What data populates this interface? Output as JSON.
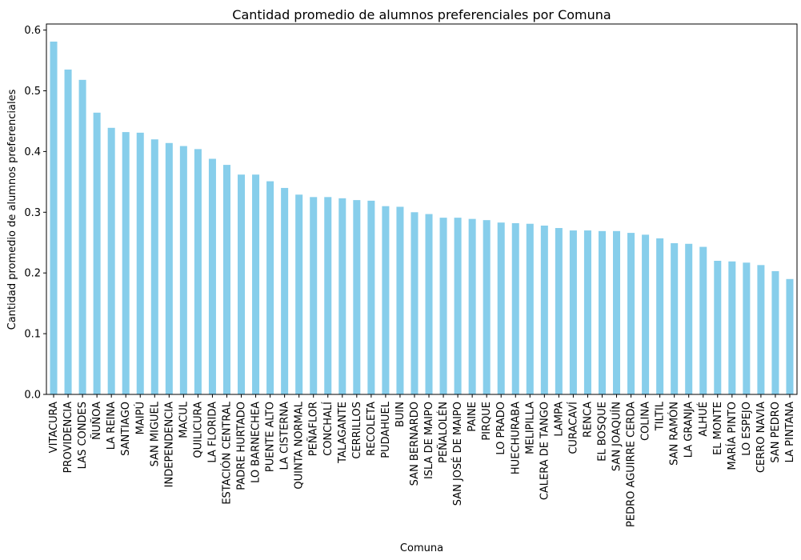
{
  "chart_data": {
    "type": "bar",
    "title": "Cantidad promedio de alumnos preferenciales por Comuna",
    "xlabel": "Comuna",
    "ylabel": "Cantidad promedio de alumnos preferenciales",
    "ylim": [
      0,
      0.61
    ],
    "yticks": [
      0.0,
      0.1,
      0.2,
      0.3,
      0.4,
      0.5,
      0.6
    ],
    "ytick_labels": [
      "0.0",
      "0.1",
      "0.2",
      "0.3",
      "0.4",
      "0.5",
      "0.6"
    ],
    "grid": false,
    "bar_color": "#87ceeb",
    "categories": [
      "VITACURA",
      "PROVIDENCIA",
      "LAS CONDES",
      "ÑUÑOA",
      "LA REINA",
      "SANTIAGO",
      "MAIPÚ",
      "SAN MIGUEL",
      "INDEPENDENCIA",
      "MACUL",
      "QUILICURA",
      "LA FLORIDA",
      "ESTACIÓN CENTRAL",
      "PADRE HURTADO",
      "LO BARNECHEA",
      "PUENTE ALTO",
      "LA CISTERNA",
      "QUINTA NORMAL",
      "PEÑAFLOR",
      "CONCHALÍ",
      "TALAGANTE",
      "CERRILLOS",
      "RECOLETA",
      "PUDAHUEL",
      "BUIN",
      "SAN BERNARDO",
      "ISLA DE MAIPO",
      "PEÑALOLÉN",
      "SAN JOSÉ DE MAIPO",
      "PAINE",
      "PIRQUE",
      "LO PRADO",
      "HUECHURABA",
      "MELIPILLA",
      "CALERA DE TANGO",
      "LAMPA",
      "CURACAVÍ",
      "RENCA",
      "EL BOSQUE",
      "SAN JOAQUÍN",
      "PEDRO AGUIRRE CERDA",
      "COLINA",
      "TILTIL",
      "SAN RAMÓN",
      "LA GRANJA",
      "ALHUÉ",
      "EL MONTE",
      "MARÍA PINTO",
      "LO ESPEJO",
      "CERRO NAVIA",
      "SAN PEDRO",
      "LA PINTANA"
    ],
    "values": [
      0.581,
      0.535,
      0.518,
      0.464,
      0.439,
      0.432,
      0.431,
      0.42,
      0.414,
      0.409,
      0.404,
      0.388,
      0.378,
      0.362,
      0.362,
      0.351,
      0.34,
      0.329,
      0.325,
      0.325,
      0.323,
      0.32,
      0.319,
      0.31,
      0.309,
      0.3,
      0.297,
      0.291,
      0.291,
      0.289,
      0.287,
      0.283,
      0.282,
      0.281,
      0.278,
      0.274,
      0.27,
      0.27,
      0.269,
      0.269,
      0.266,
      0.263,
      0.257,
      0.249,
      0.248,
      0.243,
      0.22,
      0.219,
      0.217,
      0.213,
      0.203,
      0.19
    ]
  }
}
